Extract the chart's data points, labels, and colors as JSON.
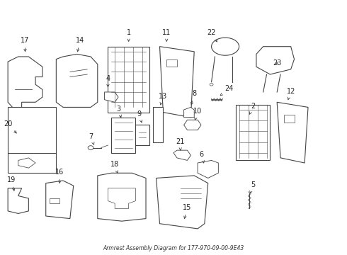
{
  "title": "Armrest Assembly Diagram for 177-970-09-00-9E43",
  "bg_color": "#ffffff",
  "line_color": "#444444",
  "text_color": "#222222",
  "fig_width": 4.9,
  "fig_height": 3.6,
  "dpi": 100
}
